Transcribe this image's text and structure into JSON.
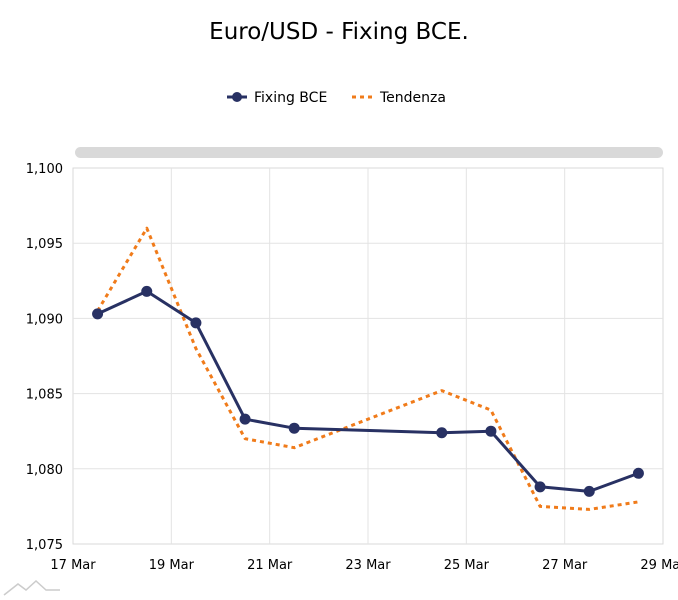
{
  "chart_data": {
    "type": "line",
    "title": "Euro/USD - Fixing BCE.",
    "xlabel": "",
    "ylabel": "",
    "x_ticks": [
      "17 Mar",
      "19 Mar",
      "21 Mar",
      "23 Mar",
      "25 Mar",
      "27 Mar",
      "29 Mar"
    ],
    "y_ticks": [
      "1,075",
      "1,080",
      "1,085",
      "1,090",
      "1,095",
      "1,100"
    ],
    "ylim": [
      1.075,
      1.1
    ],
    "xlim": [
      "2020-03-17",
      "2020-03-29"
    ],
    "grid": true,
    "legend_position": "top-center",
    "series": [
      {
        "name": "Fixing BCE",
        "style": "solid-with-markers",
        "color": "#283163",
        "points": [
          {
            "x": "2020-03-17T12:00",
            "y": 1.0903
          },
          {
            "x": "2020-03-18T12:00",
            "y": 1.0918
          },
          {
            "x": "2020-03-19T12:00",
            "y": 1.0897
          },
          {
            "x": "2020-03-20T12:00",
            "y": 1.0833
          },
          {
            "x": "2020-03-21T12:00",
            "y": 1.0827
          },
          {
            "x": "2020-03-24T12:00",
            "y": 1.0824
          },
          {
            "x": "2020-03-25T12:00",
            "y": 1.0825
          },
          {
            "x": "2020-03-26T12:00",
            "y": 1.0788
          },
          {
            "x": "2020-03-27T12:00",
            "y": 1.0785
          },
          {
            "x": "2020-03-28T12:00",
            "y": 1.0797
          }
        ]
      },
      {
        "name": "Tendenza",
        "style": "dashed",
        "color": "#f07b1a",
        "points": [
          {
            "x": "2020-03-17T12:00",
            "y": 1.0905
          },
          {
            "x": "2020-03-18T12:00",
            "y": 1.096
          },
          {
            "x": "2020-03-19T12:00",
            "y": 1.088
          },
          {
            "x": "2020-03-20T12:00",
            "y": 1.082
          },
          {
            "x": "2020-03-21T12:00",
            "y": 1.0814
          },
          {
            "x": "2020-03-24T12:00",
            "y": 1.0852
          },
          {
            "x": "2020-03-25T12:00",
            "y": 1.0839
          },
          {
            "x": "2020-03-26T12:00",
            "y": 1.0775
          },
          {
            "x": "2020-03-27T12:00",
            "y": 1.0773
          },
          {
            "x": "2020-03-28T12:00",
            "y": 1.0778
          }
        ]
      }
    ]
  },
  "scrollbar": {
    "color": "#d9d9d9"
  },
  "watermark": {
    "icon": "mountain-logo-icon",
    "color": "#cccccc"
  }
}
